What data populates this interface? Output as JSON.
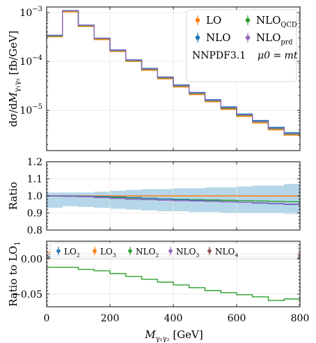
{
  "chart_data": [
    {
      "type": "line",
      "panel": "main",
      "ylabel": "dσ/dM_γ1γ2 [fb/GeV]",
      "yscale": "log",
      "ylim": [
        1.5e-06,
        0.0013
      ],
      "yticks": [
        {
          "value": 0.001,
          "base": "10",
          "exp": "−3"
        },
        {
          "value": 0.0001,
          "base": "10",
          "exp": "−4"
        },
        {
          "value": 1e-05,
          "base": "10",
          "exp": "−5"
        }
      ],
      "bin_edges": [
        0,
        50,
        100,
        150,
        200,
        250,
        300,
        350,
        400,
        450,
        500,
        550,
        600,
        650,
        700,
        750,
        800
      ],
      "series": [
        {
          "name": "LO",
          "color": "#ff7f0e",
          "values": [
            0.00032,
            0.00103,
            0.00052,
            0.00028,
            0.00016,
            0.0001,
            6.6e-05,
            4.4e-05,
            3e-05,
            2.1e-05,
            1.5e-05,
            1.05e-05,
            7.5e-06,
            5.5e-06,
            4e-06,
            3.1e-06,
            2.1e-06
          ]
        },
        {
          "name": "NLO",
          "color": "#2ca02c",
          "values": [
            0.00033,
            0.00108,
            0.00054,
            0.000292,
            0.000166,
            0.000104,
            6.9e-05,
            4.6e-05,
            3.14e-05,
            2.2e-05,
            1.56e-05,
            1.1e-05,
            7.9e-06,
            5.8e-06,
            4.2e-06,
            3.25e-06,
            2.2e-06
          ]
        },
        {
          "name": "NLO_QCD",
          "color": "#1f77b4",
          "values": [
            0.000345,
            0.0011,
            0.000555,
            0.0003,
            0.000172,
            0.000108,
            7.2e-05,
            4.8e-05,
            3.3e-05,
            2.32e-05,
            1.65e-05,
            1.18e-05,
            8.4e-06,
            6.2e-06,
            4.5e-06,
            3.5e-06,
            2.4e-06
          ]
        },
        {
          "name": "NLO_prd",
          "color": "#9467bd",
          "values": [
            0.00034,
            0.00109,
            0.00055,
            0.000297,
            0.000169,
            0.000106,
            7.05e-05,
            4.7e-05,
            3.22e-05,
            2.26e-05,
            1.6e-05,
            1.14e-05,
            8.1e-06,
            5.95e-06,
            4.3e-06,
            3.35e-06,
            2.3e-06
          ]
        }
      ],
      "annotations": {
        "pdf": "NNPDF3.1",
        "scale": "μ0 = mt"
      },
      "legend_position": "top-right"
    },
    {
      "type": "line",
      "panel": "ratio",
      "ylabel": "Ratio",
      "ylim": [
        0.8,
        1.2
      ],
      "yticks": [
        "0.8",
        "0.9",
        "1.0",
        "1.1",
        "1.2"
      ],
      "bin_edges": [
        0,
        50,
        100,
        150,
        200,
        250,
        300,
        350,
        400,
        450,
        500,
        550,
        600,
        650,
        700,
        750,
        800
      ],
      "band": {
        "color": "#9ecae1",
        "lower": [
          0.93,
          0.94,
          0.935,
          0.93,
          0.925,
          0.92,
          0.915,
          0.91,
          0.91,
          0.905,
          0.905,
          0.9,
          0.9,
          0.9,
          0.9,
          0.895
        ],
        "upper": [
          1.02,
          1.02,
          1.02,
          1.025,
          1.03,
          1.035,
          1.04,
          1.04,
          1.045,
          1.045,
          1.05,
          1.05,
          1.055,
          1.06,
          1.06,
          1.07
        ]
      },
      "series": [
        {
          "color": "#ff7f0e",
          "values": [
            1.0,
            1.0,
            1.0,
            1.0,
            1.0,
            1.0,
            1.0,
            1.0,
            1.0,
            1.0,
            1.0,
            1.0,
            1.0,
            1.0,
            1.0,
            1.0
          ]
        },
        {
          "color": "#2ca02c",
          "values": [
            1.0,
            0.998,
            0.995,
            0.993,
            0.99,
            0.987,
            0.985,
            0.982,
            0.98,
            0.978,
            0.976,
            0.974,
            0.972,
            0.97,
            0.968,
            0.966
          ]
        },
        {
          "color": "#1f77b4",
          "values": [
            1.0,
            1.0,
            0.998,
            0.996,
            0.994,
            0.99,
            0.986,
            0.982,
            0.978,
            0.974,
            0.97,
            0.966,
            0.962,
            0.958,
            0.954,
            0.95
          ]
        },
        {
          "color": "#9467bd",
          "values": [
            1.0,
            0.998,
            0.995,
            0.99,
            0.985,
            0.98,
            0.978,
            0.975,
            0.972,
            0.97,
            0.968,
            0.965,
            0.962,
            0.96,
            0.956,
            0.952
          ]
        }
      ]
    },
    {
      "type": "line",
      "panel": "components",
      "ylabel": "Ratio to LO1",
      "ylim": [
        -0.068,
        0.025
      ],
      "yticks": [
        {
          "value": 0.0,
          "label": "0.00"
        },
        {
          "value": -0.05,
          "label": "−0.05"
        }
      ],
      "xlabel": "M_γ1γ2 [GeV]",
      "xlim": [
        0,
        800
      ],
      "xticks": [
        "0",
        "200",
        "400",
        "600",
        "800"
      ],
      "bin_edges": [
        0,
        50,
        100,
        150,
        200,
        250,
        300,
        350,
        400,
        450,
        500,
        550,
        600,
        650,
        700,
        750,
        800
      ],
      "series": [
        {
          "name": "LO2",
          "color": "#1f77b4",
          "values": [
            0.003,
            0.003,
            0.003,
            0.003,
            0.003,
            0.003,
            0.003,
            0.003,
            0.003,
            0.003,
            0.003,
            0.003,
            0.003,
            0.003,
            0.003,
            0.003
          ]
        },
        {
          "name": "LO3",
          "color": "#ff7f0e",
          "values": [
            0.009,
            0.009,
            0.008,
            0.008,
            0.007,
            0.007,
            0.007,
            0.006,
            0.006,
            0.006,
            0.006,
            0.006,
            0.006,
            0.006,
            0.006,
            0.006
          ]
        },
        {
          "name": "NLO2",
          "color": "#2ca02c",
          "values": [
            -0.012,
            -0.012,
            -0.015,
            -0.017,
            -0.021,
            -0.025,
            -0.029,
            -0.033,
            -0.037,
            -0.041,
            -0.045,
            -0.048,
            -0.051,
            -0.054,
            -0.059,
            -0.057
          ]
        },
        {
          "name": "NLO3",
          "color": "#9467bd",
          "values": [
            0.006,
            0.006,
            0.006,
            0.007,
            0.007,
            0.007,
            0.007,
            0.007,
            0.007,
            0.007,
            0.007,
            0.007,
            0.007,
            0.007,
            0.007,
            0.007
          ]
        },
        {
          "name": "NLO4",
          "color": "#8c564b",
          "values": [
            0.001,
            0.001,
            0.001,
            0.001,
            0.001,
            0.001,
            0.001,
            0.001,
            0.001,
            0.001,
            0.001,
            0.001,
            0.001,
            0.001,
            0.001,
            0.001
          ]
        }
      ]
    }
  ]
}
